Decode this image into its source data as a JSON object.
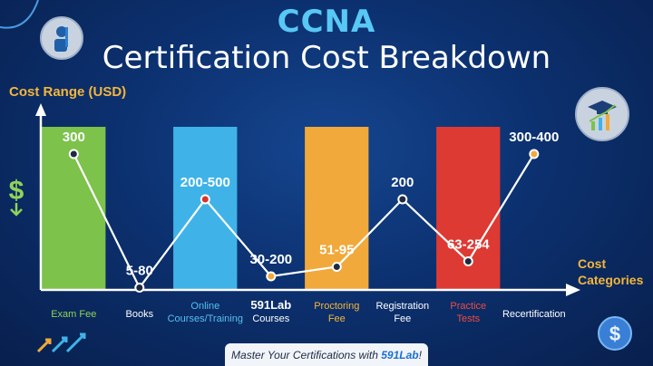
{
  "header": {
    "title_top": "CCNA",
    "title_main": "Certification Cost Breakdown"
  },
  "chart_data": {
    "type": "bar",
    "title": "CCNA Certification Cost Breakdown",
    "ylabel": "Cost Range (USD)",
    "xlabel": "Cost Categories",
    "categories": [
      "Exam Fee",
      "Books",
      "Online Courses/Training",
      "591Lab Courses",
      "Proctoring Fee",
      "Registration Fee",
      "Practice Tests",
      "Recertification"
    ],
    "value_labels": [
      "300",
      "5-80",
      "200-500",
      "30-200",
      "51-95",
      "200",
      "63-254",
      "300-400"
    ],
    "line_values": [
      300,
      5,
      200,
      30,
      51,
      200,
      63,
      300
    ],
    "ylim": [
      0,
      420
    ],
    "bars": [
      {
        "category": "Exam Fee",
        "color": "#7cc24b"
      },
      {
        "category": "Online Courses/Training",
        "color": "#3fb3e8"
      },
      {
        "category": "Proctoring Fee",
        "color": "#f0a93a"
      },
      {
        "category": "Practice Tests",
        "color": "#dd3a33"
      }
    ],
    "grid": false,
    "legend": "none"
  },
  "labels": [
    {
      "lines": [
        "Exam Fee"
      ],
      "color": "#8fd35a"
    },
    {
      "lines": [
        "Books"
      ],
      "color": "#ffffff"
    },
    {
      "lines": [
        "Online",
        "Courses/Training"
      ],
      "color": "#55c1ee"
    },
    {
      "lines": [
        "591Lab",
        "Courses"
      ],
      "color": "#ffffff",
      "bold_first": true
    },
    {
      "lines": [
        "Proctoring",
        "Fee"
      ],
      "color": "#f4b63a"
    },
    {
      "lines": [
        "Registration",
        "Fee"
      ],
      "color": "#ffffff"
    },
    {
      "lines": [
        "Practice",
        "Tests"
      ],
      "color": "#ef4b44"
    },
    {
      "lines": [
        "Recertification"
      ],
      "color": "#ffffff"
    }
  ],
  "colors": {
    "accent": "#58c8f5",
    "axis_label": "#f4b63a",
    "line": "#ffffff"
  },
  "footer": {
    "banner_prefix": "Master Your Certifications with ",
    "banner_brand": "591Lab",
    "banner_suffix": "!"
  },
  "icons": [
    "person-badge-icon",
    "graduation-growth-icon",
    "dollar-arrow-icon",
    "dollar-coin-icon",
    "trend-arrows-icon"
  ]
}
